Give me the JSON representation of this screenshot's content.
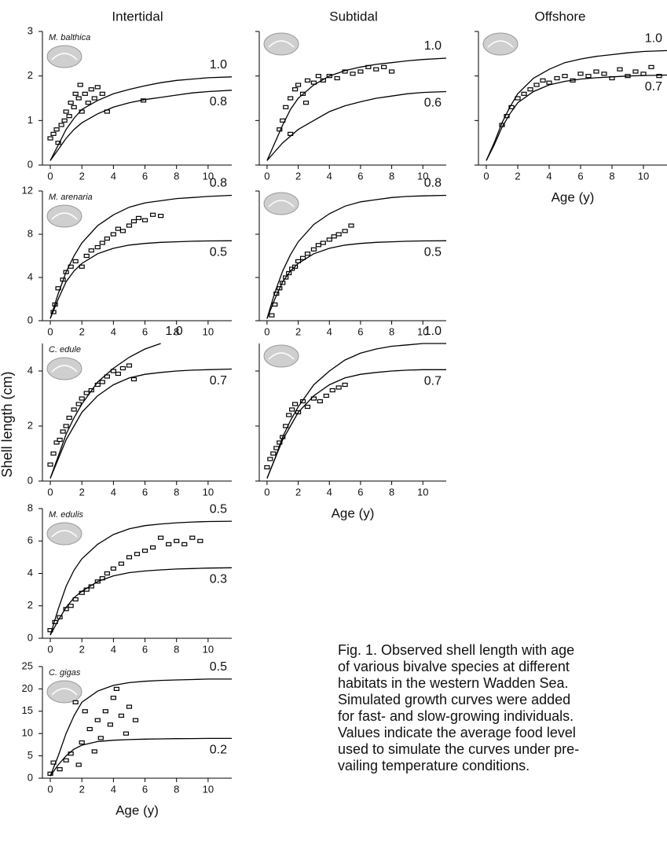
{
  "column_titles": [
    "Intertidal",
    "Subtidal",
    "Offshore"
  ],
  "ylabel": "Shell length (cm)",
  "caption": [
    "Fig. 1. Observed shell length with age",
    "of various bivalve species at different",
    "habitats in the western Wadden Sea.",
    "Simulated growth curves were added",
    "for fast- and slow-growing individuals.",
    "Values indicate the average food level",
    "used to simulate the curves under pre-",
    "vailing temperature conditions."
  ],
  "chart_data": [
    {
      "type": "scatter",
      "title": "M. balthica",
      "xlim": [
        -0.5,
        11.5
      ],
      "ylim": [
        0,
        3
      ],
      "xticks": [
        0,
        2,
        4,
        6,
        8,
        10
      ],
      "yticks": [
        0,
        1,
        2,
        3
      ],
      "ytick_labels": true,
      "x": [
        0,
        0.2,
        0.4,
        0.5,
        0.7,
        0.9,
        1.0,
        1.2,
        1.3,
        1.5,
        1.6,
        1.8,
        1.9,
        2.0,
        2.2,
        2.4,
        2.6,
        2.8,
        3.0,
        3.3,
        3.6,
        5.9
      ],
      "y": [
        0.6,
        0.7,
        0.8,
        0.5,
        0.9,
        1.0,
        1.2,
        1.1,
        1.4,
        1.3,
        1.6,
        1.5,
        1.8,
        1.2,
        1.6,
        1.4,
        1.7,
        1.5,
        1.75,
        1.6,
        1.2,
        1.45
      ],
      "curve_x": [
        0,
        0.5,
        1,
        1.5,
        2,
        3,
        4,
        5,
        6,
        7,
        8,
        9,
        10,
        11.5
      ],
      "curves": [
        {
          "name": "1.0",
          "values": [
            0.1,
            0.45,
            0.8,
            1.05,
            1.25,
            1.45,
            1.6,
            1.7,
            1.78,
            1.85,
            1.9,
            1.93,
            1.96,
            1.98
          ]
        },
        {
          "name": "0.8",
          "values": [
            0.1,
            0.35,
            0.6,
            0.8,
            0.95,
            1.15,
            1.3,
            1.4,
            1.47,
            1.52,
            1.57,
            1.62,
            1.65,
            1.68
          ]
        }
      ]
    },
    {
      "type": "scatter",
      "xlim": [
        -0.5,
        11.5
      ],
      "ylim": [
        0,
        3
      ],
      "xticks": [
        0,
        2,
        4,
        6,
        8,
        10
      ],
      "yticks": [
        0,
        1,
        2,
        3
      ],
      "ytick_labels": false,
      "x": [
        0.8,
        1.0,
        1.2,
        1.5,
        1.8,
        2.0,
        2.3,
        2.6,
        3.0,
        3.3,
        3.6,
        4.0,
        4.5,
        5.0,
        5.5,
        6.0,
        6.5,
        7.0,
        7.5,
        8.0,
        1.5,
        2.5
      ],
      "y": [
        0.8,
        1.0,
        1.3,
        1.5,
        1.7,
        1.8,
        1.6,
        1.9,
        1.85,
        2.0,
        1.9,
        2.0,
        1.95,
        2.1,
        2.05,
        2.1,
        2.2,
        2.15,
        2.2,
        2.1,
        0.7,
        1.4
      ],
      "curve_x": [
        0,
        0.5,
        1,
        1.5,
        2,
        3,
        4,
        5,
        6,
        7,
        8,
        9,
        10,
        11.5
      ],
      "curves": [
        {
          "name": "1.0",
          "values": [
            0.1,
            0.5,
            0.9,
            1.25,
            1.5,
            1.8,
            2.0,
            2.12,
            2.2,
            2.26,
            2.3,
            2.34,
            2.37,
            2.4
          ]
        },
        {
          "name": "0.6",
          "values": [
            0.1,
            0.3,
            0.5,
            0.65,
            0.8,
            1.0,
            1.2,
            1.33,
            1.42,
            1.5,
            1.55,
            1.6,
            1.63,
            1.65
          ]
        }
      ]
    },
    {
      "type": "scatter",
      "xlabel": "Age (y)",
      "xlim": [
        -0.5,
        11.5
      ],
      "ylim": [
        0,
        3
      ],
      "xticks": [
        0,
        2,
        4,
        6,
        8,
        10
      ],
      "yticks": [
        0,
        1,
        2,
        3
      ],
      "ytick_labels": false,
      "x": [
        1.0,
        1.3,
        1.6,
        2.0,
        2.4,
        2.8,
        3.2,
        3.6,
        4.0,
        4.5,
        5.0,
        5.5,
        6.0,
        6.5,
        7.0,
        7.5,
        8.0,
        8.5,
        9.0,
        9.5,
        10.0,
        10.5,
        11.0
      ],
      "y": [
        0.9,
        1.1,
        1.3,
        1.5,
        1.6,
        1.7,
        1.8,
        1.9,
        1.85,
        1.95,
        2.0,
        1.9,
        2.05,
        2.0,
        2.1,
        2.05,
        1.95,
        2.15,
        2.0,
        2.1,
        2.05,
        2.2,
        2.0
      ],
      "curve_x": [
        0,
        0.5,
        1,
        1.5,
        2,
        3,
        4,
        5,
        6,
        7,
        8,
        9,
        10,
        11.5
      ],
      "curves": [
        {
          "name": "1.0",
          "values": [
            0.1,
            0.5,
            0.95,
            1.3,
            1.6,
            1.95,
            2.15,
            2.3,
            2.38,
            2.44,
            2.48,
            2.52,
            2.55,
            2.57
          ]
        },
        {
          "name": "0.7",
          "values": [
            0.1,
            0.45,
            0.85,
            1.15,
            1.4,
            1.65,
            1.8,
            1.88,
            1.93,
            1.96,
            1.98,
            2.0,
            2.01,
            2.02
          ]
        }
      ]
    },
    {
      "type": "scatter",
      "title": "M. arenaria",
      "xlim": [
        -0.5,
        11.5
      ],
      "ylim": [
        0,
        12
      ],
      "xticks": [
        0,
        2,
        4,
        6,
        8,
        10
      ],
      "yticks": [
        0,
        4,
        8,
        12
      ],
      "ytick_labels": true,
      "x": [
        0.2,
        0.3,
        0.5,
        0.8,
        1.0,
        1.3,
        1.6,
        2.0,
        2.3,
        2.6,
        3.0,
        3.3,
        3.6,
        4.0,
        4.3,
        4.6,
        5.0,
        5.3,
        5.6,
        6.0,
        6.5,
        7.0
      ],
      "y": [
        0.8,
        1.5,
        3.0,
        3.8,
        4.5,
        5.0,
        5.5,
        5.0,
        6.0,
        6.5,
        6.8,
        7.2,
        7.6,
        8.0,
        8.5,
        8.3,
        8.8,
        9.2,
        9.5,
        9.3,
        9.8,
        9.7
      ],
      "curve_x": [
        0,
        0.5,
        1,
        1.5,
        2,
        3,
        4,
        5,
        6,
        7,
        8,
        9,
        10,
        11.5
      ],
      "curves": [
        {
          "name": "0.8",
          "values": [
            0.2,
            2.5,
            4.5,
            6.0,
            7.2,
            8.8,
            9.8,
            10.5,
            10.9,
            11.1,
            11.3,
            11.4,
            11.5,
            11.6
          ]
        },
        {
          "name": "0.5",
          "values": [
            0.2,
            2.0,
            3.6,
            4.6,
            5.3,
            6.2,
            6.7,
            7.0,
            7.15,
            7.25,
            7.3,
            7.35,
            7.38,
            7.4
          ]
        }
      ]
    },
    {
      "type": "scatter",
      "xlim": [
        -0.5,
        11.5
      ],
      "ylim": [
        0,
        12
      ],
      "xticks": [
        0,
        2,
        4,
        6,
        8,
        10
      ],
      "yticks": [
        0,
        4,
        8,
        12
      ],
      "ytick_labels": false,
      "x": [
        0.3,
        0.5,
        0.6,
        0.8,
        1.0,
        1.2,
        1.4,
        1.6,
        1.8,
        2.0,
        2.3,
        2.6,
        3.0,
        3.3,
        3.6,
        4.0,
        4.3,
        4.6,
        5.0,
        5.4
      ],
      "y": [
        0.5,
        1.5,
        2.5,
        3.0,
        3.5,
        4.0,
        4.4,
        4.8,
        5.0,
        5.5,
        5.8,
        6.2,
        6.6,
        7.0,
        7.2,
        7.5,
        7.8,
        8.0,
        8.3,
        8.8
      ],
      "curve_x": [
        0,
        0.5,
        1,
        1.5,
        2,
        3,
        4,
        5,
        6,
        7,
        8,
        9,
        10,
        11.5
      ],
      "curves": [
        {
          "name": "0.8",
          "values": [
            0.2,
            2.6,
            4.6,
            6.1,
            7.3,
            8.9,
            9.9,
            10.6,
            11.0,
            11.2,
            11.4,
            11.5,
            11.55,
            11.6
          ]
        },
        {
          "name": "0.5",
          "values": [
            0.2,
            2.0,
            3.6,
            4.6,
            5.3,
            6.2,
            6.7,
            7.0,
            7.15,
            7.25,
            7.3,
            7.35,
            7.38,
            7.4
          ]
        }
      ]
    },
    {
      "type": "scatter",
      "title": "C. edule",
      "xlim": [
        -0.5,
        11.5
      ],
      "ylim": [
        0,
        5
      ],
      "xticks": [
        0,
        2,
        4,
        6,
        8,
        10
      ],
      "yticks": [
        0,
        2,
        4
      ],
      "ytick_labels": true,
      "x": [
        0,
        0.2,
        0.4,
        0.6,
        0.8,
        1.0,
        1.2,
        1.5,
        1.8,
        2.0,
        2.3,
        2.6,
        3.0,
        3.3,
        3.6,
        4.0,
        4.3,
        4.6,
        5.0,
        5.3
      ],
      "y": [
        0.6,
        1.0,
        1.4,
        1.5,
        1.8,
        2.0,
        2.3,
        2.6,
        2.8,
        3.0,
        3.2,
        3.3,
        3.5,
        3.6,
        3.8,
        4.0,
        3.9,
        4.1,
        4.2,
        3.7
      ],
      "curve_x": [
        0,
        0.5,
        1,
        1.5,
        2,
        3,
        4,
        5,
        6,
        7,
        8,
        9,
        10,
        11.5
      ],
      "curves": [
        {
          "name": "1.0",
          "values": [
            0.1,
            0.9,
            1.7,
            2.3,
            2.8,
            3.6,
            4.1,
            4.5,
            4.8,
            5.0,
            null,
            null,
            null,
            null
          ]
        },
        {
          "name": "0.7",
          "values": [
            0.1,
            0.8,
            1.5,
            2.0,
            2.5,
            3.1,
            3.5,
            3.75,
            3.88,
            3.95,
            4.0,
            4.03,
            4.05,
            4.07
          ]
        }
      ]
    },
    {
      "type": "scatter",
      "xlabel": "Age (y)",
      "xlim": [
        -0.5,
        11.5
      ],
      "ylim": [
        0,
        5
      ],
      "xticks": [
        0,
        2,
        4,
        6,
        8,
        10
      ],
      "yticks": [
        0,
        2,
        4
      ],
      "ytick_labels": false,
      "x": [
        0,
        0.2,
        0.4,
        0.6,
        0.8,
        1.0,
        1.2,
        1.4,
        1.6,
        1.8,
        2.0,
        2.3,
        2.6,
        3.0,
        3.4,
        3.8,
        4.2,
        4.6,
        5.0
      ],
      "y": [
        0.5,
        0.8,
        1.0,
        1.2,
        1.4,
        1.6,
        2.0,
        2.4,
        2.6,
        2.8,
        2.5,
        2.9,
        2.7,
        3.0,
        2.9,
        3.1,
        3.3,
        3.4,
        3.5
      ],
      "curve_x": [
        0,
        0.5,
        1,
        1.5,
        2,
        3,
        4,
        5,
        6,
        7,
        8,
        9,
        10,
        11.5
      ],
      "curves": [
        {
          "name": "1.0",
          "values": [
            0.1,
            0.8,
            1.6,
            2.2,
            2.7,
            3.5,
            4.0,
            4.4,
            4.65,
            4.8,
            4.9,
            4.95,
            5.0,
            5.0
          ]
        },
        {
          "name": "0.7",
          "values": [
            0.1,
            0.8,
            1.5,
            2.0,
            2.5,
            3.1,
            3.5,
            3.75,
            3.88,
            3.95,
            4.0,
            4.03,
            4.05,
            4.05
          ]
        }
      ]
    },
    {
      "type": "scatter",
      "title": "M. edulis",
      "xlim": [
        -0.5,
        11.5
      ],
      "ylim": [
        0,
        8
      ],
      "xticks": [
        0,
        2,
        4,
        6,
        8,
        10
      ],
      "yticks": [
        0,
        2,
        4,
        6,
        8
      ],
      "ytick_labels": true,
      "x": [
        0,
        0.3,
        0.6,
        1.0,
        1.3,
        1.6,
        2.0,
        2.3,
        2.6,
        3.0,
        3.3,
        3.6,
        4.0,
        4.5,
        5.0,
        5.5,
        6.0,
        6.5,
        7.0,
        7.5,
        8.0,
        8.5,
        9.0,
        9.5
      ],
      "y": [
        0.5,
        1.0,
        1.3,
        1.8,
        2.0,
        2.4,
        2.8,
        3.0,
        3.2,
        3.5,
        3.7,
        4.0,
        4.3,
        4.6,
        5.0,
        5.2,
        5.4,
        5.6,
        6.2,
        5.8,
        6.0,
        5.8,
        6.2,
        6.0
      ],
      "curve_x": [
        0,
        0.5,
        1,
        1.5,
        2,
        3,
        4,
        5,
        6,
        7,
        8,
        9,
        10,
        11.5
      ],
      "curves": [
        {
          "name": "0.5",
          "values": [
            0.2,
            1.8,
            3.2,
            4.2,
            4.9,
            5.8,
            6.4,
            6.75,
            6.95,
            7.05,
            7.12,
            7.17,
            7.2,
            7.22
          ]
        },
        {
          "name": "0.3",
          "values": [
            0.2,
            1.1,
            1.9,
            2.5,
            2.9,
            3.5,
            3.85,
            4.05,
            4.15,
            4.22,
            4.27,
            4.3,
            4.33,
            4.35
          ]
        }
      ]
    },
    {
      "type": "scatter",
      "title": "C. gigas",
      "xlabel": "Age (y)",
      "xlim": [
        -0.5,
        11.5
      ],
      "ylim": [
        0,
        25
      ],
      "xticks": [
        0,
        2,
        4,
        6,
        8,
        10
      ],
      "yticks": [
        0,
        5,
        10,
        15,
        20,
        25
      ],
      "ytick_labels": true,
      "x": [
        0,
        0.2,
        0.6,
        1.0,
        1.3,
        1.6,
        1.8,
        2.0,
        2.2,
        2.5,
        2.8,
        3.0,
        3.2,
        3.5,
        3.8,
        4.0,
        4.2,
        4.5,
        4.8,
        5.0,
        5.4
      ],
      "y": [
        1.0,
        3.5,
        2.0,
        4.0,
        5.5,
        17.0,
        3.0,
        8.0,
        15.0,
        11.0,
        6.0,
        13.0,
        9.0,
        15.0,
        12.0,
        18.0,
        20.0,
        14.0,
        10.0,
        16.0,
        13.0
      ],
      "curve_x": [
        0,
        0.5,
        1,
        1.5,
        2,
        3,
        4,
        5,
        6,
        7,
        8,
        9,
        10,
        11.5
      ],
      "curves": [
        {
          "name": "0.5",
          "values": [
            0.5,
            5,
            10,
            14,
            17,
            19.5,
            20.8,
            21.4,
            21.7,
            21.9,
            22.0,
            22.1,
            22.2,
            22.2
          ]
        },
        {
          "name": "0.2",
          "values": [
            0.5,
            3,
            5,
            6.5,
            7.4,
            8.2,
            8.5,
            8.65,
            8.75,
            8.8,
            8.85,
            8.88,
            8.9,
            8.9
          ]
        }
      ]
    }
  ]
}
